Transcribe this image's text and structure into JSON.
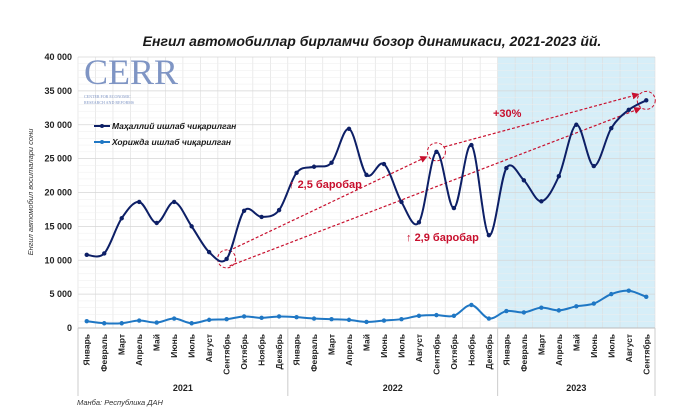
{
  "chart_data": {
    "type": "line",
    "title": "Енгил автомобиллар бирламчи бозор динамикаси, 2021-2023 йй.",
    "ylabel": "Енгил автомобил воситалари сони",
    "ylim": [
      0,
      40000
    ],
    "yticks": [
      "0",
      "5 000",
      "10 000",
      "15 000",
      "20 000",
      "25 000",
      "30 000",
      "35 000",
      "40 000"
    ],
    "grid": true,
    "legend_position": "top-left",
    "categories": [
      "Январь",
      "Февраль",
      "Март",
      "Апрель",
      "Май",
      "Июнь",
      "Июль",
      "Август",
      "Сентябрь",
      "Октябрь",
      "Ноябрь",
      "Декабрь",
      "Январь",
      "Февраль",
      "Март",
      "Апрель",
      "Май",
      "Июнь",
      "Июль",
      "Август",
      "Сентябрь",
      "Октябрь",
      "Ноябрь",
      "Декабрь",
      "Январь",
      "Февраль",
      "Март",
      "Апрель",
      "Май",
      "Июнь",
      "Июль",
      "Август",
      "Сентябрь"
    ],
    "years": [
      {
        "label": "2021",
        "months": 12
      },
      {
        "label": "2022",
        "months": 12
      },
      {
        "label": "2023",
        "months": 9
      }
    ],
    "highlighted_year": "2023",
    "series": [
      {
        "name": "Маҳаллий ишлаб чиқарилган",
        "color": "#0d1f66",
        "values": [
          10800,
          11000,
          16200,
          18600,
          15500,
          18600,
          15000,
          11200,
          10200,
          17300,
          16400,
          17400,
          22900,
          23800,
          24400,
          29400,
          22600,
          24200,
          18600,
          15600,
          26000,
          17700,
          27000,
          13700,
          23600,
          21800,
          18700,
          22400,
          30000,
          23900,
          29500,
          32200,
          33600
        ]
      },
      {
        "name": "Хорижда ишлаб чиқарилган",
        "color": "#1f77c4",
        "values": [
          1000,
          700,
          700,
          1100,
          800,
          1400,
          700,
          1200,
          1300,
          1700,
          1500,
          1700,
          1600,
          1400,
          1300,
          1200,
          900,
          1100,
          1300,
          1800,
          1900,
          1800,
          3400,
          1400,
          2500,
          2300,
          3000,
          2600,
          3200,
          3600,
          5000,
          5500,
          4600
        ]
      }
    ],
    "annotations": [
      "2,5 баробар",
      "2,9 баробар",
      "+30%"
    ],
    "annotation_color": "#c8102e",
    "shade_color": "#d6eef8",
    "source": "Манба: Республика ДАН"
  },
  "logo": {
    "text": "CERR",
    "subtitle": "CENTER FOR ECONOMIC RESEARCH AND REFORMS"
  }
}
